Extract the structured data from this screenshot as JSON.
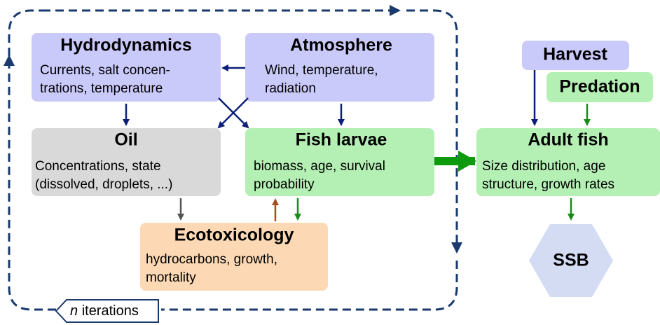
{
  "nodes": [
    {
      "title": "Hydrodynamics",
      "text": [
        "Currents, salt concen-",
        "trations, temperature"
      ]
    },
    {
      "title": "Atmosphere",
      "text": [
        "Wind, temperature,",
        "radiation"
      ]
    },
    {
      "title": "Oil",
      "text": [
        "Concentrations, state",
        "(dissolved, droplets, ...)"
      ]
    },
    {
      "title": "Fish larvae",
      "text": [
        "biomass, age, survival",
        "probability"
      ]
    },
    {
      "title": "Ecotoxicology",
      "text": [
        "hydrocarbons, growth,",
        "mortality"
      ]
    },
    {
      "title": "Harvest"
    },
    {
      "title": "Predation"
    },
    {
      "title": "Adult fish",
      "text": [
        "Size distribution, age",
        "structure, growth rates"
      ]
    },
    {
      "title": "SSB"
    }
  ],
  "loop_label": {
    "variable": "n",
    "text": "iterations"
  }
}
